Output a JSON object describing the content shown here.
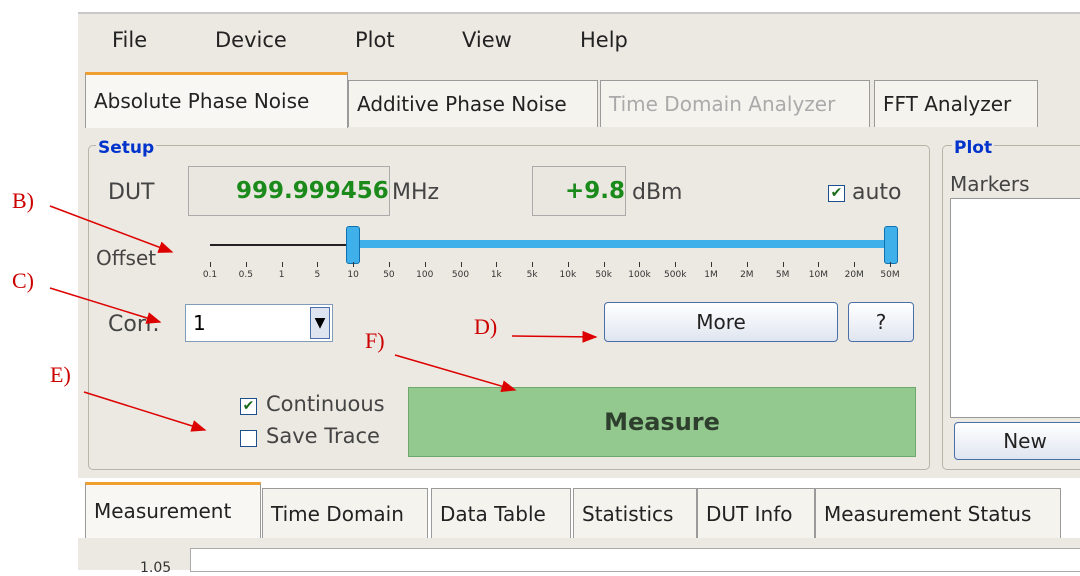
{
  "menu": [
    "File",
    "Device",
    "Plot",
    "View",
    "Help"
  ],
  "tabs": [
    "Absolute Phase Noise",
    "Additive Phase Noise",
    "Time Domain Analyzer",
    "FFT Analyzer"
  ],
  "setup": {
    "title": "Setup",
    "dut_label": "DUT",
    "frequency": "999.999456",
    "frequency_unit": "MHz",
    "power": "+9.8",
    "power_unit": "dBm",
    "auto": "auto",
    "offset_label": "Offset",
    "offset_ticks": [
      "0.1",
      "0.5",
      "1",
      "5",
      "10",
      "50",
      "100",
      "500",
      "1k",
      "5k",
      "10k",
      "50k",
      "100k",
      "500k",
      "1M",
      "2M",
      "5M",
      "10M",
      "20M",
      "50M"
    ],
    "corr_label": "Corr.",
    "corr_value": "1",
    "more": "More",
    "help": "?",
    "continuous": "Continuous",
    "save_trace": "Save Trace",
    "measure": "Measure"
  },
  "plot": {
    "title": "Plot",
    "markers": "Markers",
    "new": "New"
  },
  "bottom_tabs": [
    "Measurement",
    "Time Domain",
    "Data Table",
    "Statistics",
    "DUT Info",
    "Measurement Status"
  ],
  "graph_label": "1.05",
  "annotations": [
    "B)",
    "C)",
    "D)",
    "E)",
    "F)"
  ]
}
